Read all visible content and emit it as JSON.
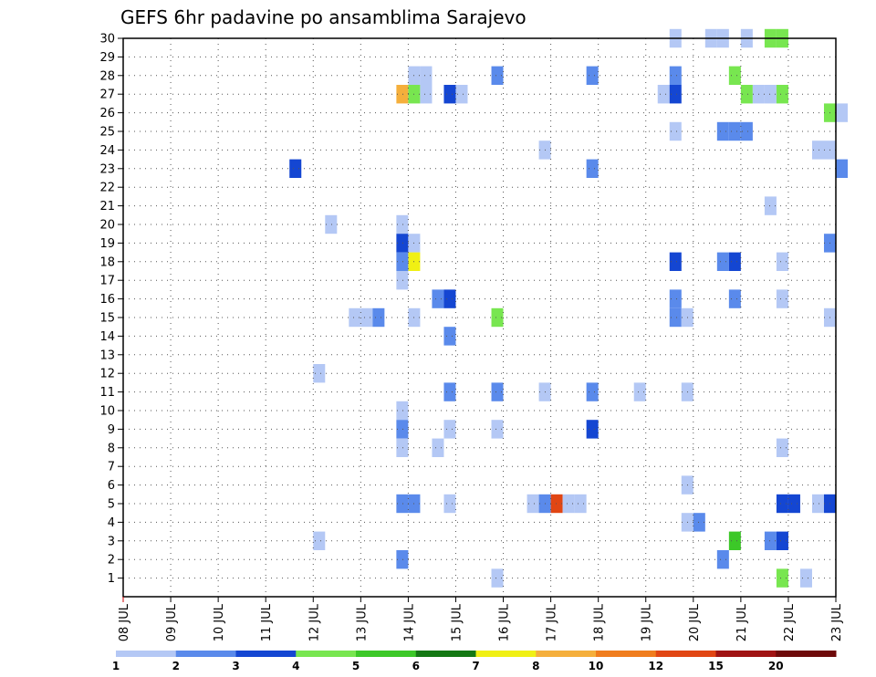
{
  "chart_data": {
    "type": "heatmap",
    "title": "GEFS 6hr padavine po ansamblima Sarajevo",
    "x_tick_labels": [
      "08 JUL",
      "09 JUL",
      "10 JUL",
      "11 JUL",
      "12 JUL",
      "13 JUL",
      "14 JUL",
      "15 JUL",
      "16 JUL",
      "17 JUL",
      "18 JUL",
      "19 JUL",
      "20 JUL",
      "21 JUL",
      "22 JUL",
      "23 JUL"
    ],
    "x_range_days": [
      8,
      23
    ],
    "y_tick_labels": [
      "1",
      "2",
      "3",
      "4",
      "5",
      "6",
      "7",
      "8",
      "9",
      "10",
      "11",
      "12",
      "13",
      "14",
      "15",
      "16",
      "17",
      "18",
      "19",
      "20",
      "21",
      "22",
      "23",
      "24",
      "25",
      "26",
      "27",
      "28",
      "29",
      "30"
    ],
    "y_range": [
      0,
      30
    ],
    "time_step_hours": 6,
    "grid": "dotted",
    "color_scale": {
      "labels": [
        "1",
        "2",
        "3",
        "4",
        "5",
        "6",
        "7",
        "8",
        "10",
        "12",
        "15",
        "20"
      ],
      "colors": [
        "#b4c8f5",
        "#5a8aeb",
        "#1446d2",
        "#78e650",
        "#3cc828",
        "#147814",
        "#f0f014",
        "#f5af3c",
        "#f07d1e",
        "#e14614",
        "#a01414",
        "#6e0a0a"
      ]
    },
    "cells": [
      {
        "member": 30,
        "day": 19.5,
        "level": 1
      },
      {
        "member": 30,
        "day": 20.25,
        "level": 1
      },
      {
        "member": 30,
        "day": 20.5,
        "level": 1
      },
      {
        "member": 30,
        "day": 21.0,
        "level": 1
      },
      {
        "member": 30,
        "day": 21.5,
        "level": 4
      },
      {
        "member": 30,
        "day": 21.75,
        "level": 4
      },
      {
        "member": 28,
        "day": 14.0,
        "level": 1
      },
      {
        "member": 28,
        "day": 14.25,
        "level": 1
      },
      {
        "member": 28,
        "day": 15.75,
        "level": 2
      },
      {
        "member": 28,
        "day": 17.75,
        "level": 2
      },
      {
        "member": 28,
        "day": 19.5,
        "level": 2
      },
      {
        "member": 28,
        "day": 20.75,
        "level": 4
      },
      {
        "member": 27,
        "day": 13.75,
        "level": 8
      },
      {
        "member": 27,
        "day": 14.0,
        "level": 4
      },
      {
        "member": 27,
        "day": 14.25,
        "level": 1
      },
      {
        "member": 27,
        "day": 14.75,
        "level": 3
      },
      {
        "member": 27,
        "day": 15.0,
        "level": 1
      },
      {
        "member": 27,
        "day": 19.25,
        "level": 1
      },
      {
        "member": 27,
        "day": 19.5,
        "level": 3
      },
      {
        "member": 27,
        "day": 21.0,
        "level": 4
      },
      {
        "member": 27,
        "day": 21.25,
        "level": 1
      },
      {
        "member": 27,
        "day": 21.5,
        "level": 1
      },
      {
        "member": 27,
        "day": 21.75,
        "level": 4
      },
      {
        "member": 26,
        "day": 22.75,
        "level": 4
      },
      {
        "member": 26,
        "day": 23.0,
        "level": 1
      },
      {
        "member": 25,
        "day": 19.5,
        "level": 1
      },
      {
        "member": 25,
        "day": 20.5,
        "level": 2
      },
      {
        "member": 25,
        "day": 20.75,
        "level": 2
      },
      {
        "member": 25,
        "day": 21.0,
        "level": 2
      },
      {
        "member": 24,
        "day": 16.75,
        "level": 1
      },
      {
        "member": 24,
        "day": 22.5,
        "level": 1
      },
      {
        "member": 24,
        "day": 22.75,
        "level": 1
      },
      {
        "member": 23,
        "day": 11.5,
        "level": 3
      },
      {
        "member": 23,
        "day": 17.75,
        "level": 2
      },
      {
        "member": 23,
        "day": 23.0,
        "level": 2
      },
      {
        "member": 21,
        "day": 21.5,
        "level": 1
      },
      {
        "member": 20,
        "day": 12.25,
        "level": 1
      },
      {
        "member": 20,
        "day": 13.75,
        "level": 1
      },
      {
        "member": 19,
        "day": 13.75,
        "level": 3
      },
      {
        "member": 19,
        "day": 14.0,
        "level": 1
      },
      {
        "member": 19,
        "day": 22.75,
        "level": 2
      },
      {
        "member": 18,
        "day": 13.75,
        "level": 2
      },
      {
        "member": 18,
        "day": 14.0,
        "level": 7
      },
      {
        "member": 18,
        "day": 19.5,
        "level": 3
      },
      {
        "member": 18,
        "day": 20.5,
        "level": 2
      },
      {
        "member": 18,
        "day": 20.75,
        "level": 3
      },
      {
        "member": 18,
        "day": 21.75,
        "level": 1
      },
      {
        "member": 17,
        "day": 13.75,
        "level": 1
      },
      {
        "member": 16,
        "day": 14.5,
        "level": 2
      },
      {
        "member": 16,
        "day": 14.75,
        "level": 3
      },
      {
        "member": 16,
        "day": 19.5,
        "level": 2
      },
      {
        "member": 16,
        "day": 20.75,
        "level": 2
      },
      {
        "member": 16,
        "day": 21.75,
        "level": 1
      },
      {
        "member": 15,
        "day": 12.75,
        "level": 1
      },
      {
        "member": 15,
        "day": 13.0,
        "level": 1
      },
      {
        "member": 15,
        "day": 13.25,
        "level": 2
      },
      {
        "member": 15,
        "day": 14.0,
        "level": 1
      },
      {
        "member": 15,
        "day": 15.75,
        "level": 4
      },
      {
        "member": 15,
        "day": 19.5,
        "level": 2
      },
      {
        "member": 15,
        "day": 19.75,
        "level": 1
      },
      {
        "member": 15,
        "day": 22.75,
        "level": 1
      },
      {
        "member": 14,
        "day": 14.75,
        "level": 2
      },
      {
        "member": 12,
        "day": 12.0,
        "level": 1
      },
      {
        "member": 11,
        "day": 14.75,
        "level": 2
      },
      {
        "member": 11,
        "day": 15.75,
        "level": 2
      },
      {
        "member": 11,
        "day": 16.75,
        "level": 1
      },
      {
        "member": 11,
        "day": 17.75,
        "level": 2
      },
      {
        "member": 11,
        "day": 18.75,
        "level": 1
      },
      {
        "member": 11,
        "day": 19.75,
        "level": 1
      },
      {
        "member": 10,
        "day": 13.75,
        "level": 1
      },
      {
        "member": 9,
        "day": 13.75,
        "level": 2
      },
      {
        "member": 9,
        "day": 14.75,
        "level": 1
      },
      {
        "member": 9,
        "day": 15.75,
        "level": 1
      },
      {
        "member": 9,
        "day": 17.75,
        "level": 3
      },
      {
        "member": 8,
        "day": 13.75,
        "level": 1
      },
      {
        "member": 8,
        "day": 14.5,
        "level": 1
      },
      {
        "member": 8,
        "day": 21.75,
        "level": 1
      },
      {
        "member": 6,
        "day": 19.75,
        "level": 1
      },
      {
        "member": 5,
        "day": 13.75,
        "level": 2
      },
      {
        "member": 5,
        "day": 14.0,
        "level": 2
      },
      {
        "member": 5,
        "day": 14.75,
        "level": 1
      },
      {
        "member": 5,
        "day": 16.5,
        "level": 1
      },
      {
        "member": 5,
        "day": 16.75,
        "level": 2
      },
      {
        "member": 5,
        "day": 17.0,
        "level": 10
      },
      {
        "member": 5,
        "day": 17.25,
        "level": 1
      },
      {
        "member": 5,
        "day": 17.5,
        "level": 1
      },
      {
        "member": 5,
        "day": 21.75,
        "level": 3
      },
      {
        "member": 5,
        "day": 22.0,
        "level": 3
      },
      {
        "member": 5,
        "day": 22.5,
        "level": 1
      },
      {
        "member": 5,
        "day": 22.75,
        "level": 3
      },
      {
        "member": 4,
        "day": 19.75,
        "level": 1
      },
      {
        "member": 4,
        "day": 20.0,
        "level": 2
      },
      {
        "member": 3,
        "day": 12.0,
        "level": 1
      },
      {
        "member": 3,
        "day": 20.75,
        "level": 5
      },
      {
        "member": 3,
        "day": 21.5,
        "level": 2
      },
      {
        "member": 3,
        "day": 21.75,
        "level": 3
      },
      {
        "member": 2,
        "day": 13.75,
        "level": 2
      },
      {
        "member": 2,
        "day": 20.5,
        "level": 2
      },
      {
        "member": 1,
        "day": 15.75,
        "level": 1
      },
      {
        "member": 1,
        "day": 21.75,
        "level": 4
      },
      {
        "member": 1,
        "day": 22.25,
        "level": 1
      }
    ]
  }
}
